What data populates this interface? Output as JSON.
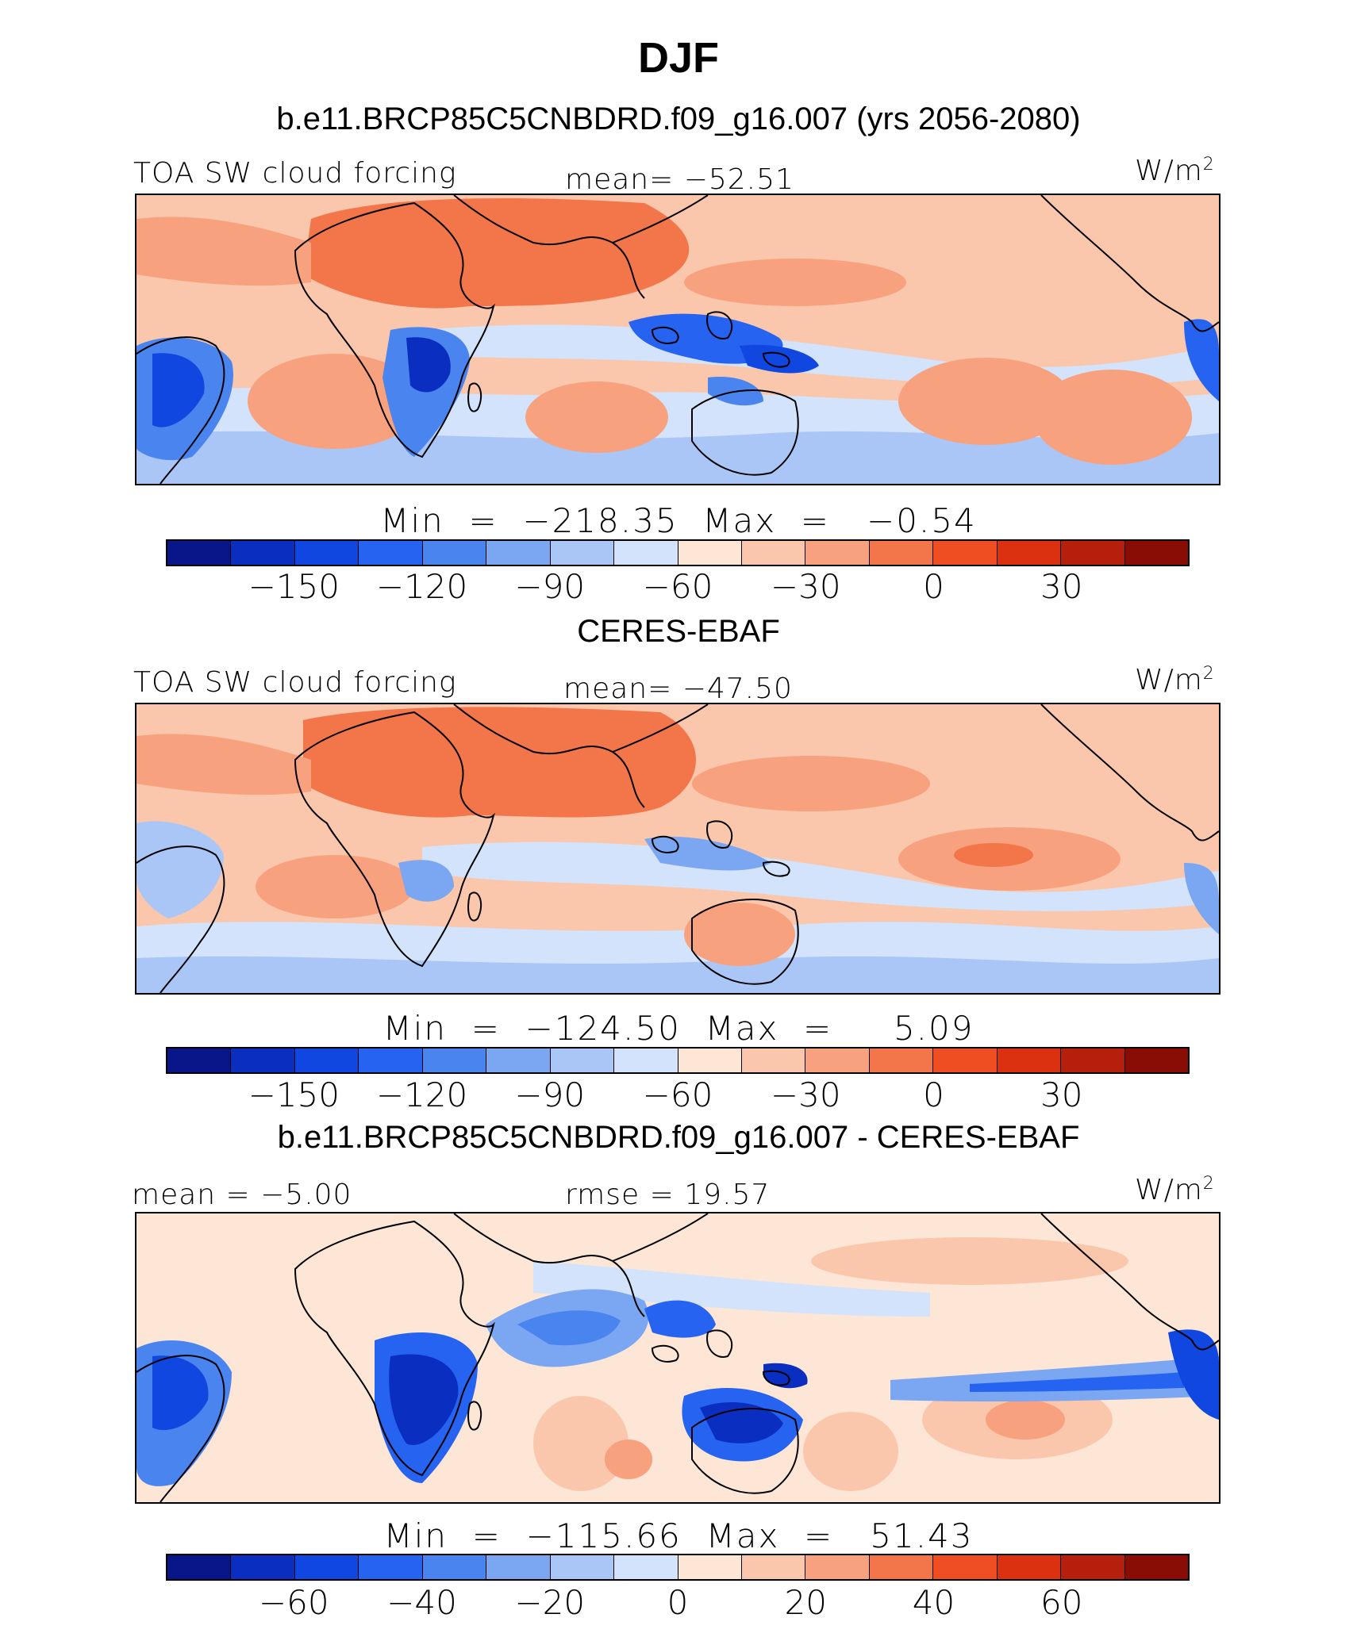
{
  "title": "DJF",
  "palette": [
    "#08168a",
    "#0a2ec0",
    "#0f47e0",
    "#2563f0",
    "#4a84ee",
    "#7ba6f2",
    "#aac6f7",
    "#d2e3fb",
    "#fde6d6",
    "#fbc7ac",
    "#f8a17f",
    "#f3764b",
    "#ee4e22",
    "#db3110",
    "#b51f0c",
    "#8a0d05"
  ],
  "panels": [
    {
      "subtitle": "b.e11.BRCP85C5CNBDRD.f09_g16.007 (yrs 2056-2080)",
      "left_label": "TOA SW cloud forcing",
      "center_label": "mean=  −52.51",
      "units": "W/m",
      "units_sup": "2",
      "min_max": "Min  =  −218.35  Max  =   −0.54",
      "ticks": [
        "−150",
        "−120",
        "−90",
        "−60",
        "−30",
        "0",
        "30"
      ]
    },
    {
      "subtitle": "CERES-EBAF",
      "left_label": "TOA SW cloud forcing",
      "center_label": "mean=  −47.50",
      "units": "W/m",
      "units_sup": "2",
      "min_max": "Min  =  −124.50  Max  =     5.09",
      "ticks": [
        "−150",
        "−120",
        "−90",
        "−60",
        "−30",
        "0",
        "30"
      ]
    },
    {
      "subtitle": "b.e11.BRCP85C5CNBDRD.f09_g16.007 - CERES-EBAF",
      "left_label": "mean  =   −5.00",
      "center_label": "rmse  =   19.57",
      "units": "W/m",
      "units_sup": "2",
      "min_max": "Min  =  −115.66  Max  =   51.43",
      "ticks": [
        "−60",
        "−40",
        "−20",
        "0",
        "20",
        "40",
        "60"
      ]
    }
  ]
}
